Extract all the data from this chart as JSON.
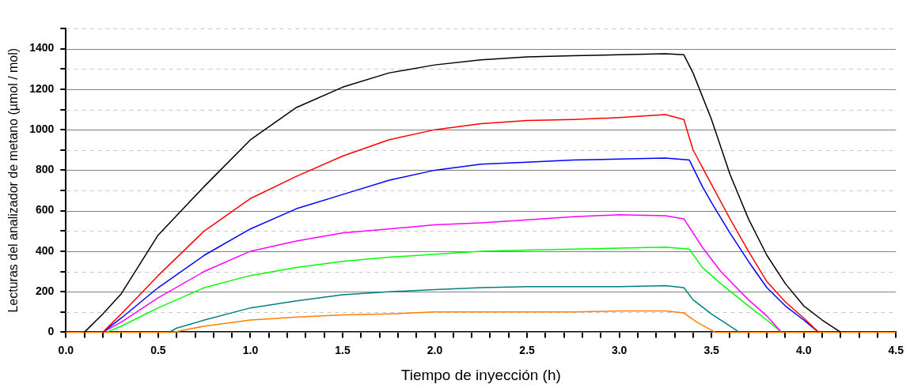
{
  "chart_data": {
    "type": "line",
    "xlabel": "Tiempo de inyección (h)",
    "ylabel": "Lecturas del analizador de metano (µmol / mol)",
    "xlim": [
      0,
      4.5
    ],
    "ylim": [
      0,
      1500
    ],
    "xticks": [
      {
        "value": 0,
        "label": "0.0"
      },
      {
        "value": 0.1,
        "label": null
      },
      {
        "value": 0.2,
        "label": null
      },
      {
        "value": 0.3,
        "label": null
      },
      {
        "value": 0.4,
        "label": null
      },
      {
        "value": 0.5,
        "label": "0.5"
      },
      {
        "value": 0.6,
        "label": null
      },
      {
        "value": 0.7,
        "label": null
      },
      {
        "value": 0.8,
        "label": null
      },
      {
        "value": 0.9,
        "label": null
      },
      {
        "value": 1,
        "label": "1.0"
      },
      {
        "value": 1.1,
        "label": null
      },
      {
        "value": 1.2,
        "label": null
      },
      {
        "value": 1.3,
        "label": null
      },
      {
        "value": 1.4,
        "label": null
      },
      {
        "value": 1.5,
        "label": "1.5"
      },
      {
        "value": 1.6,
        "label": null
      },
      {
        "value": 1.7,
        "label": null
      },
      {
        "value": 1.8,
        "label": null
      },
      {
        "value": 1.9,
        "label": null
      },
      {
        "value": 2,
        "label": "2.0"
      },
      {
        "value": 2.1,
        "label": null
      },
      {
        "value": 2.2,
        "label": null
      },
      {
        "value": 2.3,
        "label": null
      },
      {
        "value": 2.4,
        "label": null
      },
      {
        "value": 2.5,
        "label": "2.5"
      },
      {
        "value": 2.6,
        "label": null
      },
      {
        "value": 2.7,
        "label": null
      },
      {
        "value": 2.8,
        "label": null
      },
      {
        "value": 2.9,
        "label": null
      },
      {
        "value": 3,
        "label": "3.0"
      },
      {
        "value": 3.1,
        "label": null
      },
      {
        "value": 3.2,
        "label": null
      },
      {
        "value": 3.3,
        "label": null
      },
      {
        "value": 3.4,
        "label": null
      },
      {
        "value": 3.5,
        "label": "3.5"
      },
      {
        "value": 3.6,
        "label": null
      },
      {
        "value": 3.7,
        "label": null
      },
      {
        "value": 3.8,
        "label": null
      },
      {
        "value": 3.9,
        "label": null
      },
      {
        "value": 4,
        "label": "4.0"
      },
      {
        "value": 4.1,
        "label": null
      },
      {
        "value": 4.2,
        "label": null
      },
      {
        "value": 4.3,
        "label": null
      },
      {
        "value": 4.4,
        "label": null
      },
      {
        "value": 4.5,
        "label": "4.5"
      }
    ],
    "yticks": [
      0,
      {
        "value": 100,
        "label": null
      },
      200,
      {
        "value": 300,
        "label": null
      },
      400,
      {
        "value": 500,
        "label": null
      },
      600,
      {
        "value": 700,
        "label": null
      },
      800,
      {
        "value": 900,
        "label": null
      },
      1000,
      {
        "value": 1100,
        "label": null
      },
      1200,
      {
        "value": 1300,
        "label": null
      },
      1400,
      {
        "value": 1500,
        "label": null
      }
    ],
    "grid": "y",
    "legend": false,
    "marker": "none",
    "line_style": "solid",
    "series": [
      {
        "color": "#000000",
        "x": [
          0.1,
          0.2,
          0.3,
          0.5,
          0.75,
          1.0,
          1.25,
          1.5,
          1.75,
          2.0,
          2.25,
          2.5,
          2.75,
          3.0,
          3.25,
          3.35,
          3.4,
          3.5,
          3.6,
          3.7,
          3.8,
          3.9,
          4.0,
          4.1,
          4.2
        ],
        "values": [
          0,
          90,
          190,
          480,
          720,
          950,
          1110,
          1210,
          1280,
          1320,
          1345,
          1360,
          1365,
          1370,
          1375,
          1370,
          1280,
          1050,
          780,
          560,
          380,
          240,
          130,
          60,
          0
        ]
      },
      {
        "color": "#ff0000",
        "x": [
          0.2,
          0.3,
          0.5,
          0.75,
          1.0,
          1.25,
          1.5,
          1.75,
          2.0,
          2.25,
          2.5,
          2.75,
          3.0,
          3.25,
          3.35,
          3.4,
          3.5,
          3.6,
          3.7,
          3.8,
          3.9,
          4.0,
          4.08
        ],
        "values": [
          0,
          90,
          280,
          500,
          660,
          770,
          870,
          950,
          1000,
          1030,
          1045,
          1050,
          1060,
          1075,
          1050,
          900,
          730,
          560,
          400,
          250,
          150,
          70,
          0
        ]
      },
      {
        "color": "#0000ff",
        "x": [
          0.2,
          0.3,
          0.5,
          0.75,
          1.0,
          1.25,
          1.5,
          1.75,
          2.0,
          2.25,
          2.5,
          2.75,
          3.0,
          3.25,
          3.38,
          3.45,
          3.5,
          3.6,
          3.7,
          3.8,
          3.9,
          4.0,
          4.08
        ],
        "values": [
          0,
          70,
          220,
          380,
          510,
          610,
          680,
          750,
          800,
          830,
          840,
          850,
          855,
          860,
          850,
          720,
          640,
          490,
          350,
          220,
          130,
          60,
          0
        ]
      },
      {
        "color": "#ff00ff",
        "x": [
          0.2,
          0.3,
          0.5,
          0.75,
          1.0,
          1.25,
          1.5,
          1.75,
          2.0,
          2.25,
          2.5,
          2.75,
          3.0,
          3.25,
          3.35,
          3.45,
          3.55,
          3.7,
          3.8,
          3.88
        ],
        "values": [
          0,
          50,
          170,
          300,
          400,
          450,
          490,
          510,
          530,
          540,
          555,
          570,
          580,
          575,
          560,
          420,
          300,
          160,
          80,
          0
        ]
      },
      {
        "color": "#00ff00",
        "x": [
          0.22,
          0.3,
          0.5,
          0.75,
          1.0,
          1.25,
          1.5,
          1.75,
          2.0,
          2.25,
          2.5,
          2.75,
          3.0,
          3.25,
          3.38,
          3.45,
          3.55,
          3.7,
          3.8,
          3.88
        ],
        "values": [
          0,
          30,
          120,
          220,
          280,
          320,
          350,
          370,
          385,
          400,
          405,
          410,
          415,
          420,
          410,
          320,
          240,
          130,
          60,
          0
        ]
      },
      {
        "color": "#008080",
        "x": [
          0.56,
          0.6,
          0.75,
          1.0,
          1.25,
          1.5,
          1.75,
          2.0,
          2.25,
          2.5,
          2.75,
          3.0,
          3.25,
          3.35,
          3.4,
          3.5,
          3.6,
          3.65
        ],
        "values": [
          0,
          20,
          60,
          120,
          155,
          185,
          200,
          210,
          220,
          225,
          225,
          225,
          230,
          220,
          160,
          90,
          30,
          0
        ]
      },
      {
        "color": "#ff8000",
        "x": [
          0,
          0.58,
          0.75,
          1.0,
          1.25,
          1.5,
          1.75,
          2.0,
          2.25,
          2.5,
          2.75,
          3.0,
          3.25,
          3.35,
          3.42,
          3.5,
          3.52,
          4.5
        ],
        "values": [
          0,
          0,
          30,
          60,
          75,
          85,
          90,
          100,
          100,
          100,
          100,
          105,
          105,
          95,
          50,
          10,
          0,
          0
        ]
      }
    ]
  }
}
